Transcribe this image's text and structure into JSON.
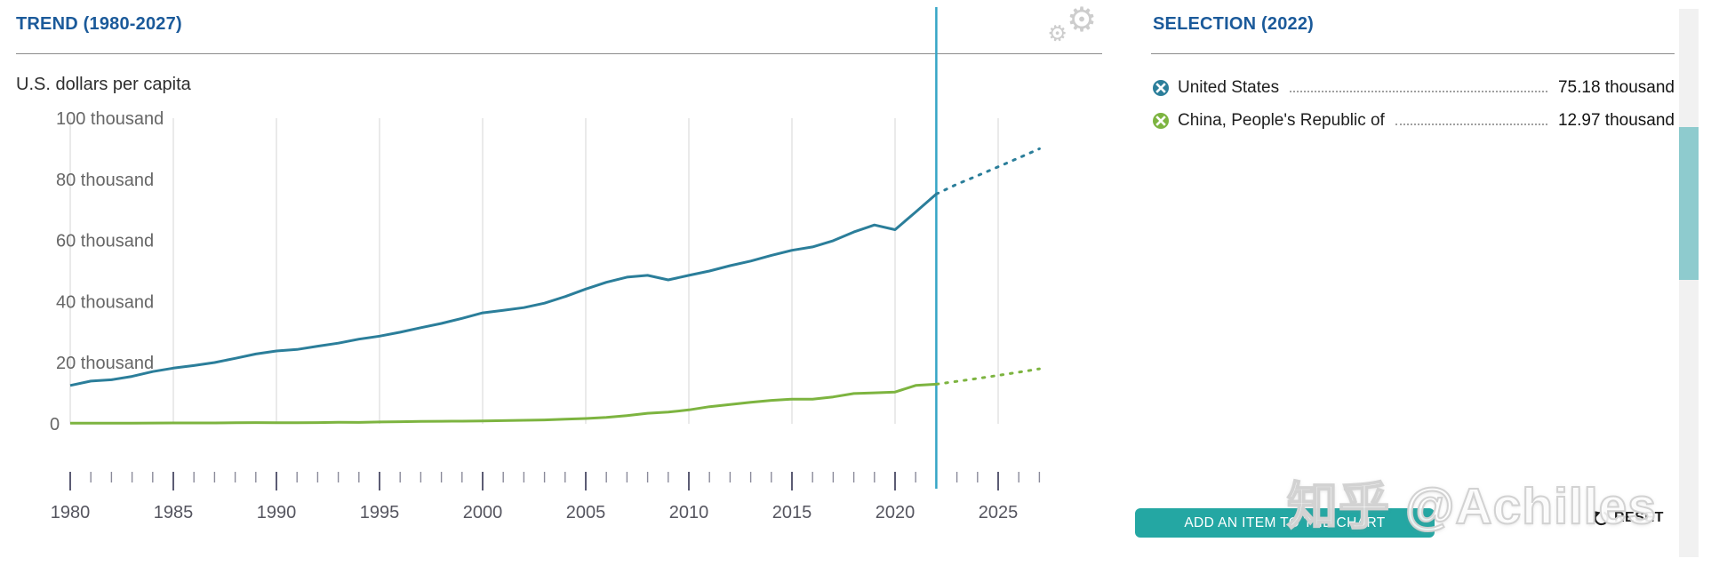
{
  "left_panel": {
    "title": "TREND (1980-2027)",
    "unit_label": "U.S. dollars per capita",
    "gear_icon": "settings-gears-icon"
  },
  "right_panel": {
    "title": "SELECTION (2022)",
    "items": [
      {
        "label": "United States",
        "value": "75.18 thousand",
        "icon": "remove-item-icon",
        "icon_color": "#2b7e9a"
      },
      {
        "label": "China, People's Republic of",
        "value": "12.97 thousand",
        "icon": "remove-item-icon",
        "icon_color": "#7db440"
      }
    ],
    "add_button_label": "ADD AN ITEM TO THE CHART",
    "reset_label": "RESET",
    "reset_icon": "reset-circular-arrow-icon"
  },
  "watermark": {
    "text": "知乎 @Achilles"
  },
  "colors": {
    "header_blue": "#1b5a9a",
    "us_line": "#2b7e9a",
    "china_line": "#7db440",
    "highlight_line": "#35a5c6",
    "button_teal": "#24a7a3",
    "scroll_thumb": "#8ecbce",
    "gridline": "#dcdcdc"
  },
  "chart_data": {
    "type": "line",
    "title": "TREND (1980-2027)",
    "ylabel": "U.S. dollars per capita",
    "unit": "thousand U.S. dollars per capita",
    "x_range": [
      1980,
      2027
    ],
    "frequency": "annual",
    "ylim": [
      0,
      100
    ],
    "y_ticks": [
      {
        "value": 0,
        "label": "0"
      },
      {
        "value": 20,
        "label": "20 thousand"
      },
      {
        "value": 40,
        "label": "40 thousand"
      },
      {
        "value": 60,
        "label": "60 thousand"
      },
      {
        "value": 80,
        "label": "80 thousand"
      },
      {
        "value": 100,
        "label": "100 thousand"
      }
    ],
    "x_ticks_major": [
      1980,
      1985,
      1990,
      1995,
      2000,
      2005,
      2010,
      2015,
      2020,
      2025
    ],
    "grid": "vertical-only",
    "highlight_year": 2022,
    "projection_from_year": 2022,
    "projection_style": "dotted",
    "legend_position": "right-panel",
    "series": [
      {
        "name": "United States",
        "color": "#2b7e9a",
        "start_year": 1980,
        "value_at_highlight": 75.18,
        "values": [
          12.55,
          13.97,
          14.41,
          15.53,
          17.09,
          18.23,
          19.07,
          20.05,
          21.42,
          22.86,
          23.85,
          24.32,
          25.42,
          26.39,
          27.69,
          28.69,
          29.97,
          31.46,
          32.85,
          34.51,
          36.31,
          37.13,
          38.02,
          39.49,
          41.64,
          44.11,
          46.3,
          47.98,
          48.57,
          47.1,
          48.59,
          50.01,
          51.74,
          53.25,
          55.12,
          56.76,
          57.87,
          59.91,
          62.77,
          65.05,
          63.53,
          69.29,
          75.18,
          78.4,
          81.2,
          84.1,
          87.0,
          90.0
        ]
      },
      {
        "name": "China, People's Republic of",
        "color": "#7db440",
        "start_year": 1980,
        "value_at_highlight": 12.97,
        "values": [
          0.19,
          0.2,
          0.2,
          0.22,
          0.25,
          0.29,
          0.28,
          0.3,
          0.37,
          0.41,
          0.35,
          0.36,
          0.42,
          0.52,
          0.47,
          0.61,
          0.71,
          0.78,
          0.83,
          0.87,
          0.96,
          1.05,
          1.15,
          1.29,
          1.51,
          1.75,
          2.1,
          2.69,
          3.47,
          3.83,
          4.55,
          5.62,
          6.3,
          7.05,
          7.68,
          8.07,
          8.09,
          8.82,
          9.9,
          10.14,
          10.41,
          12.55,
          12.97,
          13.9,
          14.85,
          15.85,
          16.9,
          18.0
        ]
      }
    ]
  }
}
